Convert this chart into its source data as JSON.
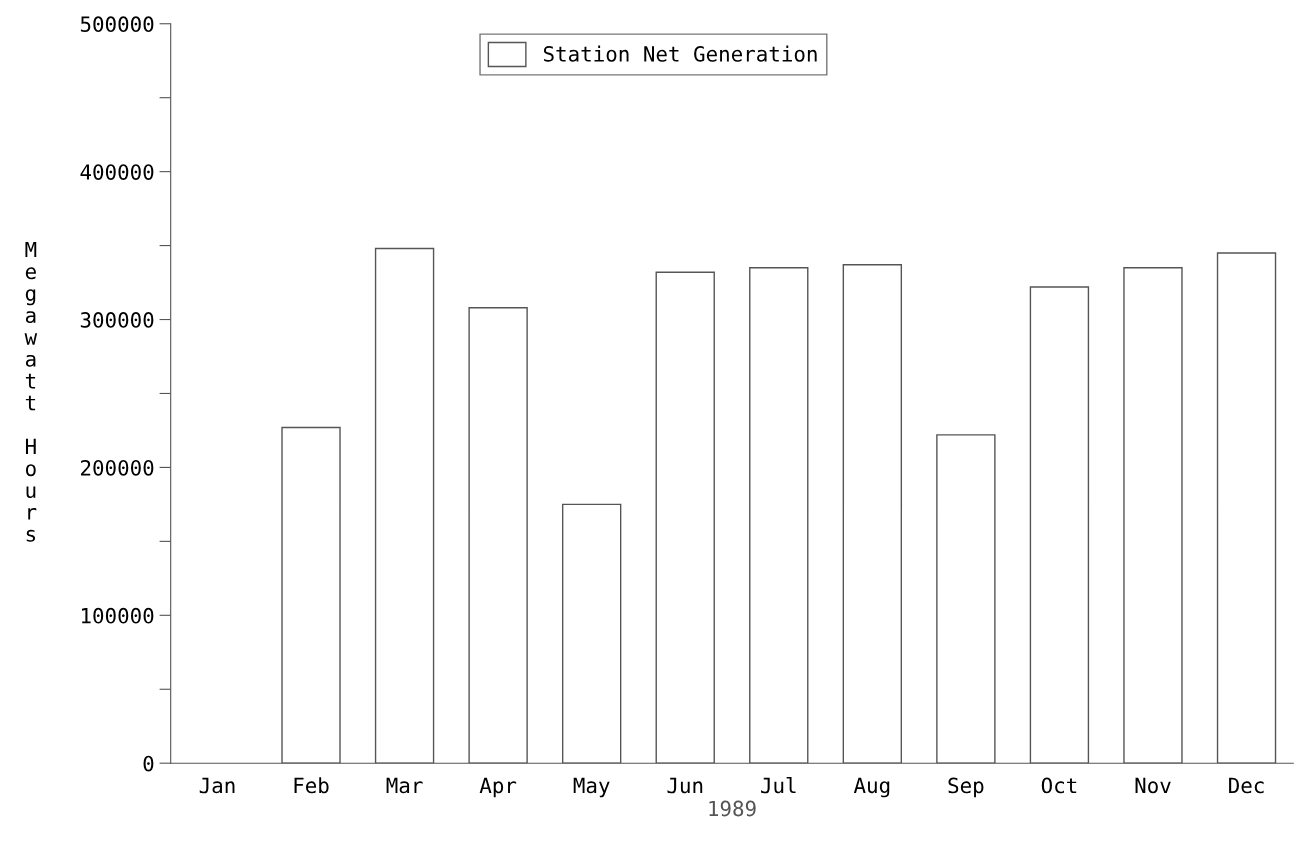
{
  "chart_data": {
    "type": "bar",
    "xlabel": "1989",
    "ylabel": "Megawatt Hours",
    "categories": [
      "Jan",
      "Feb",
      "Mar",
      "Apr",
      "May",
      "Jun",
      "Jul",
      "Aug",
      "Sep",
      "Oct",
      "Nov",
      "Dec"
    ],
    "series": [
      {
        "name": "Station Net Generation",
        "color": "#ffffff",
        "values": [
          null,
          227000,
          348000,
          308000,
          175000,
          332000,
          335000,
          337000,
          222000,
          322000,
          335000,
          345000
        ]
      }
    ],
    "ylim": [
      0,
      500000
    ],
    "yticks": [
      0,
      {
        "value": 50000,
        "label": null
      },
      100000,
      {
        "value": 150000,
        "label": null
      },
      200000,
      {
        "value": 250000,
        "label": null
      },
      300000,
      {
        "value": 350000,
        "label": null
      },
      400000,
      {
        "value": 450000,
        "label": null
      },
      500000
    ],
    "grid": false,
    "legend": "top"
  }
}
